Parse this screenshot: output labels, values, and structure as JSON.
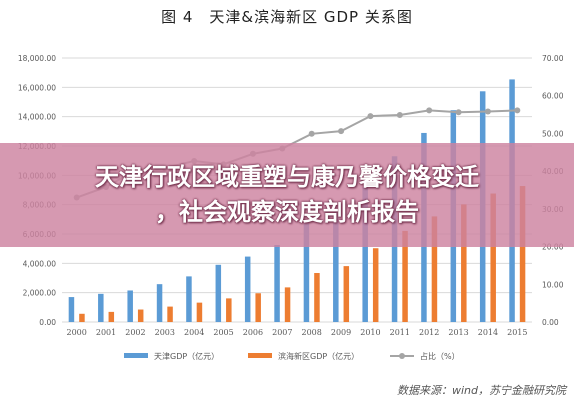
{
  "overlay": {
    "line1": "天津行政区域重塑与康乃馨价格变迁",
    "line2": "，社会观察深度剖析报告"
  },
  "source": "数据来源：wind，苏宁金融研究院",
  "chart_data": {
    "type": "bar",
    "title": "图 4　天津&滨海新区 GDP 关系图",
    "categories": [
      "2000",
      "2001",
      "2002",
      "2003",
      "2004",
      "2005",
      "2006",
      "2007",
      "2008",
      "2009",
      "2010",
      "2011",
      "2012",
      "2013",
      "2014",
      "2015"
    ],
    "y_left": {
      "ylim": [
        0,
        18000
      ],
      "ticks": [
        "0.00",
        "2,000.00",
        "4,000.00",
        "6,000.00",
        "8,000.00",
        "10,000.00",
        "12,000.00",
        "14,000.00",
        "16,000.00",
        "18,000.00"
      ]
    },
    "y_right": {
      "ylim": [
        0,
        70
      ],
      "ticks": [
        "0.00",
        "10.00",
        "20.00",
        "30.00",
        "40.00",
        "50.00",
        "60.00",
        "70.00"
      ]
    },
    "series": [
      {
        "name": "天津GDP（亿元）",
        "kind": "bar",
        "axis": "left",
        "color": "#5b9bd5",
        "values": [
          1700,
          1920,
          2150,
          2580,
          3110,
          3900,
          4460,
          5250,
          6720,
          7520,
          9220,
          11300,
          12890,
          14440,
          15730,
          16540
        ]
      },
      {
        "name": "滨海新区GDP（亿元）",
        "kind": "bar",
        "axis": "left",
        "color": "#ed7d31",
        "values": [
          560,
          690,
          850,
          1050,
          1320,
          1610,
          1960,
          2360,
          3340,
          3810,
          5030,
          6210,
          7200,
          8020,
          8760,
          9270
        ]
      },
      {
        "name": "占比（%）",
        "kind": "line",
        "axis": "right",
        "color": "#a5a5a5",
        "values": [
          33.0,
          35.8,
          40.2,
          40.8,
          42.7,
          41.8,
          44.6,
          46.0,
          49.9,
          50.6,
          54.6,
          54.9,
          56.1,
          55.6,
          55.8,
          56.1
        ]
      }
    ]
  }
}
